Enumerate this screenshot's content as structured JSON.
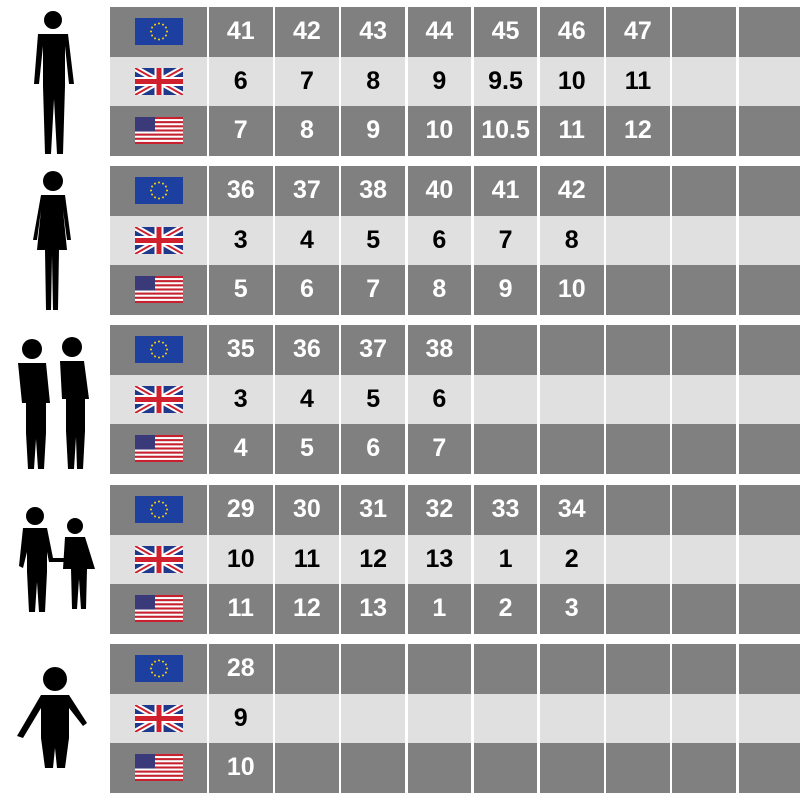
{
  "flags": {
    "eu": "eu-flag-icon",
    "uk": "uk-flag-icon",
    "us": "us-flag-icon"
  },
  "colors": {
    "dark_row": "#808080",
    "light_row": "#e0e0e0"
  },
  "groups": [
    {
      "figure": "adult-man-silhouette-icon",
      "eu": [
        "41",
        "42",
        "43",
        "44",
        "45",
        "46",
        "47"
      ],
      "uk": [
        "6",
        "7",
        "8",
        "9",
        "9.5",
        "10",
        "11"
      ],
      "us": [
        "7",
        "8",
        "9",
        "10",
        "10.5",
        "11",
        "12"
      ]
    },
    {
      "figure": "adult-woman-silhouette-icon",
      "eu": [
        "36",
        "37",
        "38",
        "40",
        "41",
        "42"
      ],
      "uk": [
        "3",
        "4",
        "5",
        "6",
        "7",
        "8"
      ],
      "us": [
        "5",
        "6",
        "7",
        "8",
        "9",
        "10"
      ]
    },
    {
      "figure": "teen-boy-girl-silhouette-icon",
      "eu": [
        "35",
        "36",
        "37",
        "38"
      ],
      "uk": [
        "3",
        "4",
        "5",
        "6"
      ],
      "us": [
        "4",
        "5",
        "6",
        "7"
      ]
    },
    {
      "figure": "children-holding-hands-silhouette-icon",
      "eu": [
        "29",
        "30",
        "31",
        "32",
        "33",
        "34"
      ],
      "uk": [
        "10",
        "11",
        "12",
        "13",
        "1",
        "2"
      ],
      "us": [
        "11",
        "12",
        "13",
        "1",
        "2",
        "3"
      ]
    },
    {
      "figure": "toddler-silhouette-icon",
      "eu": [
        "28"
      ],
      "uk": [
        "9"
      ],
      "us": [
        "10"
      ]
    }
  ]
}
